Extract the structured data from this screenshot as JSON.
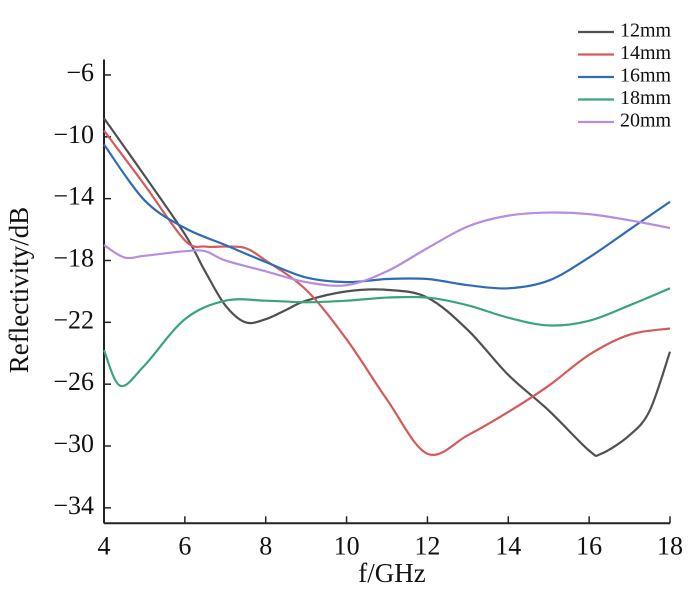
{
  "chart_data": {
    "type": "line",
    "xlabel": "f/GHz",
    "ylabel": "Reflectivity/dB",
    "xlim": [
      4,
      18
    ],
    "ylim": [
      -35,
      -5
    ],
    "xticks": [
      4,
      6,
      8,
      10,
      12,
      14,
      16,
      18
    ],
    "yticks": [
      {
        "value": -6,
        "label": "−6"
      },
      {
        "value": -10,
        "label": "−10"
      },
      {
        "value": -14,
        "label": "−14"
      },
      {
        "value": -18,
        "label": "−18"
      },
      {
        "value": -22,
        "label": "−22"
      },
      {
        "value": -26,
        "label": "−26"
      },
      {
        "value": -30,
        "label": "−30"
      },
      {
        "value": -34,
        "label": "−34"
      }
    ],
    "legend": "top-right",
    "series": [
      {
        "name": "12mm",
        "color": "#505050",
        "x": [
          4,
          5,
          6,
          6.5,
          7,
          7.5,
          8,
          8.5,
          9,
          10,
          11,
          12,
          13,
          14,
          15,
          16,
          16.3,
          17,
          17.5,
          18
        ],
        "values": [
          -8.8,
          -12.5,
          -16.3,
          -18.7,
          -20.9,
          -22.0,
          -21.8,
          -21.2,
          -20.6,
          -20.0,
          -19.9,
          -20.4,
          -22.5,
          -25.4,
          -27.7,
          -30.3,
          -30.5,
          -29.3,
          -27.7,
          -23.9
        ]
      },
      {
        "name": "14mm",
        "color": "#d65a5a",
        "x": [
          4,
          5,
          6,
          6.5,
          7,
          7.5,
          8,
          9,
          10,
          11,
          12,
          13,
          14,
          15,
          16,
          17,
          18
        ],
        "values": [
          -9.6,
          -13.1,
          -16.7,
          -17.1,
          -17.1,
          -17.2,
          -18.0,
          -19.9,
          -23.1,
          -27.0,
          -30.5,
          -29.3,
          -27.8,
          -26.1,
          -24.1,
          -22.8,
          -22.4
        ]
      },
      {
        "name": "16mm",
        "color": "#2f6cb3",
        "x": [
          4,
          5,
          6,
          7,
          8,
          9,
          10,
          11,
          12,
          13,
          14,
          15,
          16,
          17,
          18
        ],
        "values": [
          -10.5,
          -14.1,
          -15.9,
          -17.0,
          -18.1,
          -19.1,
          -19.4,
          -19.2,
          -19.2,
          -19.6,
          -19.8,
          -19.3,
          -17.8,
          -16.0,
          -14.2
        ]
      },
      {
        "name": "18mm",
        "color": "#3aa57a",
        "x": [
          4,
          4.4,
          5,
          6,
          7,
          8,
          9,
          10,
          11,
          12,
          13,
          14,
          15,
          16,
          17,
          18
        ],
        "values": [
          -23.8,
          -26.1,
          -24.8,
          -21.8,
          -20.6,
          -20.6,
          -20.7,
          -20.6,
          -20.4,
          -20.4,
          -20.9,
          -21.7,
          -22.2,
          -21.9,
          -20.9,
          -19.8
        ]
      },
      {
        "name": "20mm",
        "color": "#b48ee0",
        "x": [
          4,
          4.5,
          5,
          6,
          6.5,
          7,
          8,
          9,
          10,
          11,
          12,
          13,
          14,
          15,
          16,
          17,
          18
        ],
        "values": [
          -17.0,
          -17.8,
          -17.7,
          -17.4,
          -17.4,
          -18.0,
          -18.7,
          -19.4,
          -19.6,
          -18.7,
          -17.2,
          -15.8,
          -15.1,
          -14.9,
          -15.0,
          -15.4,
          -15.9
        ]
      }
    ]
  }
}
